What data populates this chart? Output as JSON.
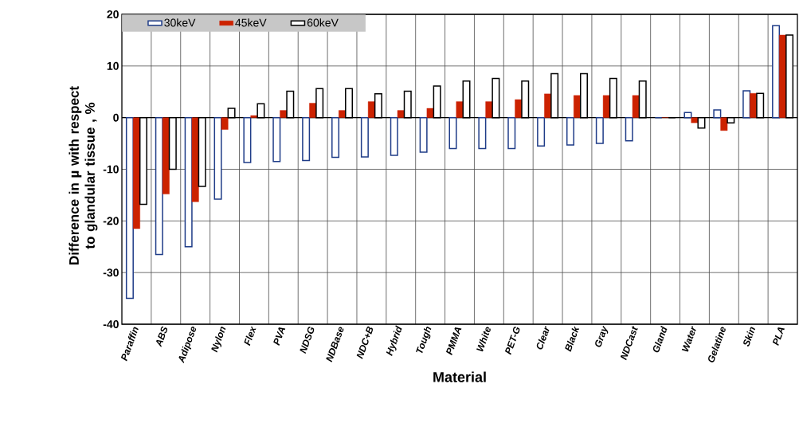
{
  "chart_data": {
    "type": "bar",
    "xlabel": "Material",
    "ylabel": "Difference in µ with respect to glandular tissue , %",
    "categories": [
      "Paraffin",
      "ABS",
      "Adipose",
      "Nylon",
      "Flex",
      "PVA",
      "NDSG",
      "NDBase",
      "NDC+B",
      "Hybrid",
      "Tough",
      "PMMA",
      "White",
      "PET-G",
      "Clear",
      "Black",
      "Gray",
      "NDCast",
      "Gland",
      "Water",
      "Gelatine",
      "Skin",
      "PLA"
    ],
    "series": [
      {
        "name": "30keV",
        "color": "#1f3c88",
        "values": [
          -35,
          -26.5,
          -25,
          -15.8,
          -8.7,
          -8.5,
          -8.3,
          -7.7,
          -7.6,
          -7.3,
          -6.7,
          -6,
          -6,
          -6,
          -5.5,
          -5.3,
          -5,
          -4.5,
          0,
          1,
          1.5,
          5.2,
          17.8
        ]
      },
      {
        "name": "45keV",
        "color": "#cc2200",
        "values": [
          -21.5,
          -14.8,
          -16.3,
          -2.3,
          0.4,
          1.4,
          2.8,
          1.4,
          3.1,
          1.4,
          1.8,
          3.1,
          3.1,
          3.5,
          4.6,
          4.3,
          4.3,
          4.3,
          0,
          -1,
          -2.5,
          4.7,
          16
        ]
      },
      {
        "name": "60keV",
        "color": "#000000",
        "values": [
          -16.8,
          -10,
          -13.3,
          1.8,
          2.7,
          5.1,
          5.6,
          5.6,
          4.6,
          5.1,
          6.1,
          7.1,
          7.6,
          7.1,
          8.5,
          8.5,
          7.6,
          7.1,
          0,
          -2,
          -1,
          4.7,
          16
        ]
      }
    ],
    "ylim": [
      -40,
      20
    ],
    "yticks": [
      -40,
      -30,
      -20,
      -10,
      0,
      10,
      20
    ],
    "grid": true,
    "legend": "top left"
  }
}
